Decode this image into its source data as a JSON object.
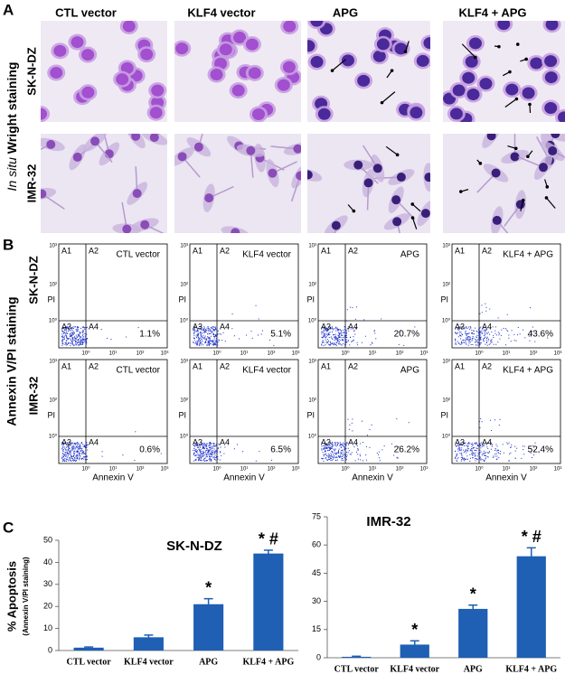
{
  "panel_a": {
    "label": "A",
    "side_label_italic": "In situ",
    "side_label": "Wright staining",
    "column_titles": [
      "CTL vector",
      "KLF4 vector",
      "APG",
      "KLF4 + APG"
    ],
    "row_labels": [
      "SK-N-DZ",
      "IMR-32"
    ]
  },
  "panel_b": {
    "label": "B",
    "side_label": "Annexin V/PI staining",
    "row_labels": [
      "SK-N-DZ",
      "IMR-32"
    ],
    "y_axis_label": "PI",
    "x_axis_label": "Annexin V",
    "quadrant_labels": [
      "A1",
      "A2",
      "A3",
      "A4"
    ],
    "x_tick_labels": [
      "10⁰",
      "10¹",
      "10²",
      "10³"
    ],
    "y_tick_labels": [
      "10³",
      "10²",
      "10⁰"
    ],
    "plots": [
      [
        {
          "title": "CTL vector",
          "percent": "1.1%"
        },
        {
          "title": "KLF4 vector",
          "percent": "5.1%"
        },
        {
          "title": "APG",
          "percent": "20.7%"
        },
        {
          "title": "KLF4 + APG",
          "percent": "43.6%"
        }
      ],
      [
        {
          "title": "CTL vector",
          "percent": "0.6%"
        },
        {
          "title": "KLF4 vector",
          "percent": "6.5%"
        },
        {
          "title": "APG",
          "percent": "26.2%"
        },
        {
          "title": "KLF4 + APG",
          "percent": "52.4%"
        }
      ]
    ]
  },
  "panel_c": {
    "label": "C",
    "y_label": "% Apoptosis",
    "y_sublabel": "(Annexin V/PI staining)"
  },
  "chart_data": [
    {
      "type": "bar",
      "title": "SK-N-DZ",
      "categories": [
        "CTL vector",
        "KLF4 vector",
        "APG",
        "KLF4 + APG"
      ],
      "values": [
        1.3,
        6,
        21,
        44
      ],
      "errors": [
        0.3,
        1,
        2.5,
        1.5
      ],
      "annotations": [
        null,
        null,
        "*",
        "* #"
      ],
      "color": "#1f5fb4",
      "ylim": [
        0,
        50
      ],
      "yticks": [
        0,
        10,
        20,
        30,
        40,
        50
      ]
    },
    {
      "type": "bar",
      "title": "IMR-32",
      "categories": [
        "CTL vector",
        "KLF4 vector",
        "APG",
        "KLF4 + APG"
      ],
      "values": [
        0.5,
        7,
        26,
        54
      ],
      "errors": [
        0.3,
        2,
        2,
        4.5
      ],
      "annotations": [
        null,
        "*",
        "*",
        "* #"
      ],
      "color": "#1f5fb4",
      "ylim": [
        0,
        75
      ],
      "yticks": [
        0,
        15,
        30,
        45,
        60,
        75
      ]
    }
  ]
}
